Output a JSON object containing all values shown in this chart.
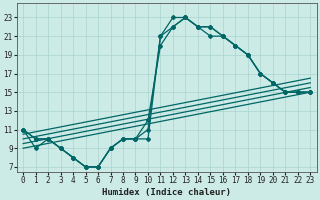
{
  "xlabel": "Humidex (Indice chaleur)",
  "xlim": [
    -0.5,
    23.5
  ],
  "ylim": [
    6.5,
    24.5
  ],
  "xticks": [
    0,
    1,
    2,
    3,
    4,
    5,
    6,
    7,
    8,
    9,
    10,
    11,
    12,
    13,
    14,
    15,
    16,
    17,
    18,
    19,
    20,
    21,
    22,
    23
  ],
  "yticks": [
    7,
    9,
    11,
    13,
    15,
    17,
    19,
    21,
    23
  ],
  "bg_color": "#cceae6",
  "grid_color": "#aad4cf",
  "line_color": "#006666",
  "curved_series": [
    [
      11,
      10,
      10,
      9,
      8,
      7,
      7,
      9,
      10,
      10,
      10,
      21,
      23,
      23,
      22,
      22,
      21,
      20,
      19,
      17,
      16,
      15,
      15,
      15
    ],
    [
      11,
      10,
      10,
      9,
      8,
      7,
      7,
      9,
      10,
      10,
      12,
      20,
      22,
      23,
      22,
      22,
      21,
      20,
      19,
      17,
      16,
      15,
      15,
      15
    ],
    [
      11,
      9,
      10,
      9,
      8,
      7,
      7,
      9,
      10,
      10,
      11,
      21,
      22,
      23,
      22,
      21,
      21,
      20,
      19,
      17,
      16,
      15,
      15,
      15
    ]
  ],
  "straight_lines": [
    [
      [
        0,
        23
      ],
      [
        9,
        15
      ]
    ],
    [
      [
        0,
        23
      ],
      [
        9.5,
        15.5
      ]
    ],
    [
      [
        0,
        23
      ],
      [
        10,
        16
      ]
    ],
    [
      [
        0,
        23
      ],
      [
        10.5,
        16.5
      ]
    ]
  ],
  "marker": "D",
  "marker_size": 2.0,
  "linewidth": 0.9,
  "tick_fontsize": 5.5,
  "xlabel_fontsize": 6.5
}
